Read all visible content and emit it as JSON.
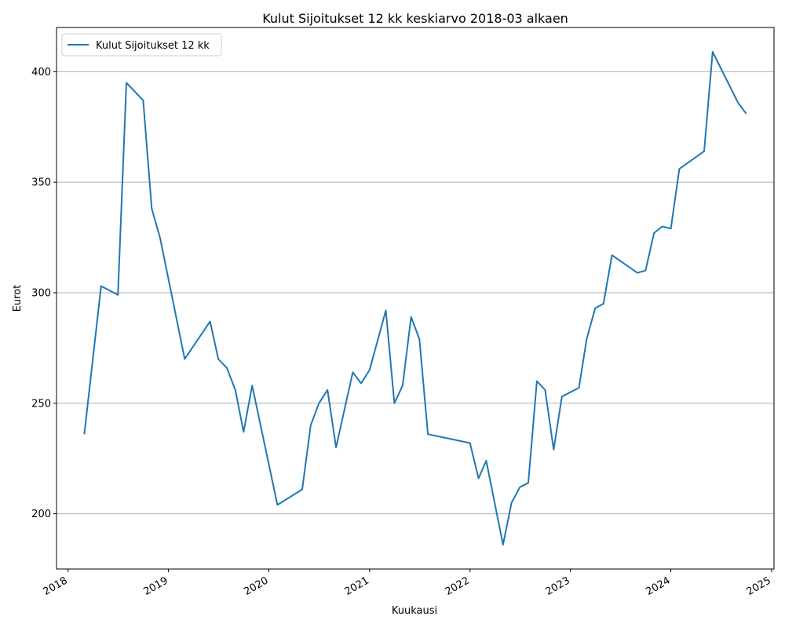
{
  "chart_data": {
    "type": "line",
    "title": "Kulut Sijoitukset 12 kk keskiarvo 2018-03 alkaen",
    "xlabel": "Kuukausi",
    "ylabel": "Eurot",
    "legend": {
      "placement": "top-left"
    },
    "grid": {
      "x": false,
      "y": true
    },
    "xlim": [
      "2017-11-20",
      "2025-01-10"
    ],
    "ylim": [
      175,
      420
    ],
    "x_ticks": [
      "2018",
      "2019",
      "2020",
      "2021",
      "2022",
      "2023",
      "2024",
      "2025"
    ],
    "y_ticks": [
      200,
      250,
      300,
      350,
      400
    ],
    "series": [
      {
        "name": "Kulut Sijoitukset 12 kk",
        "color": "#1f77b4",
        "x": [
          "2018-03",
          "2018-05",
          "2018-07",
          "2018-08",
          "2018-10",
          "2018-11",
          "2018-12",
          "2019-03",
          "2019-06",
          "2019-07",
          "2019-08",
          "2019-09",
          "2019-10",
          "2019-11",
          "2020-02",
          "2020-05",
          "2020-06",
          "2020-07",
          "2020-08",
          "2020-09",
          "2020-11",
          "2020-12",
          "2021-01",
          "2021-03",
          "2021-04",
          "2021-05",
          "2021-06",
          "2021-07",
          "2021-08",
          "2022-01",
          "2022-02",
          "2022-03",
          "2022-05",
          "2022-06",
          "2022-07",
          "2022-08",
          "2022-09",
          "2022-10",
          "2022-11",
          "2022-12",
          "2023-02",
          "2023-03",
          "2023-04",
          "2023-05",
          "2023-06",
          "2023-09",
          "2023-10",
          "2023-11",
          "2023-12",
          "2024-01",
          "2024-02",
          "2024-05",
          "2024-06",
          "2024-09",
          "2024-10"
        ],
        "y": [
          236,
          303,
          299,
          395,
          387,
          338,
          325,
          270,
          287,
          270,
          266,
          256,
          237,
          258,
          204,
          211,
          240,
          250,
          256,
          230,
          264,
          259,
          265,
          292,
          250,
          258,
          289,
          279,
          236,
          232,
          216,
          224,
          186,
          205,
          212,
          214,
          260,
          256,
          229,
          253,
          257,
          279,
          293,
          295,
          317,
          309,
          310,
          327,
          330,
          329,
          356,
          364,
          409,
          386,
          381
        ]
      }
    ]
  }
}
